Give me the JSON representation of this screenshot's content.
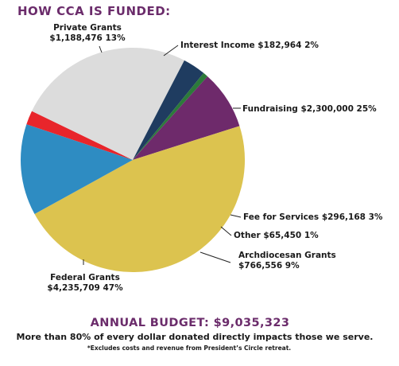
{
  "colors": {
    "accent": "#6b2c6b"
  },
  "chart_data": {
    "type": "pie",
    "title": "HOW CCA IS FUNDED:",
    "slices": [
      {
        "line1": "Interest Income $182,964  2%",
        "line2": "",
        "value": 182964,
        "percent": 2,
        "color": "#e8252b"
      },
      {
        "line1": "Fundraising  $2,300,000 25%",
        "line2": "",
        "value": 2300000,
        "percent": 25,
        "color": "#dcdcdc"
      },
      {
        "line1": "Fee for Services  $296,168  3%",
        "line2": "",
        "value": 296168,
        "percent": 3,
        "color": "#1f3c60"
      },
      {
        "line1": "Other $65,450  1%",
        "line2": "",
        "value": 65450,
        "percent": 1,
        "color": "#2c7a3a"
      },
      {
        "line1": "Archdiocesan Grants",
        "line2": "$766,556  9%",
        "value": 766556,
        "percent": 9,
        "color": "#6e2a6b"
      },
      {
        "line1": "Federal Grants",
        "line2": "$4,235,709  47%",
        "value": 4235709,
        "percent": 47,
        "color": "#dcc34f"
      },
      {
        "line1": "Private Grants",
        "line2": "$1,188,476  13%",
        "value": 1188476,
        "percent": 13,
        "color": "#2e8cc2"
      }
    ]
  },
  "footer": {
    "budget": "ANNUAL BUDGET: $9,035,323",
    "statement": "More than 80% of every dollar donated directly impacts those we serve.",
    "note": "*Excludes costs and revenue from President’s Circle retreat."
  }
}
